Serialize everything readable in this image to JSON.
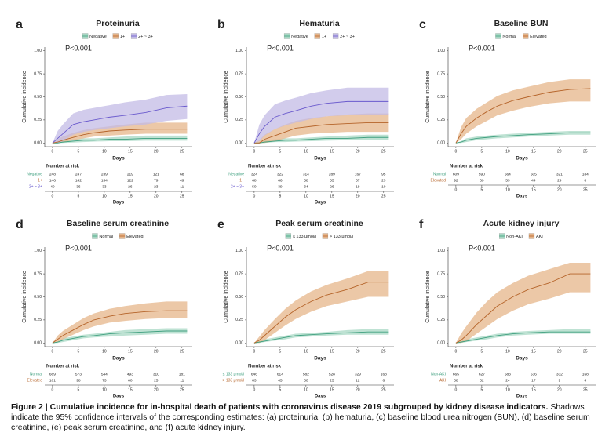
{
  "chart_data": [
    {
      "type": "line",
      "letter": "a",
      "title": "Proteinuria",
      "annotation": "P<0.001",
      "ylabel": "Cumulative incidence",
      "xlabel": "Days",
      "risk_title": "Number at risk",
      "risk_xlabel": "Days",
      "legend_position": "top",
      "xlim": [
        -1.5,
        27
      ],
      "ylim": [
        -0.04,
        1.04
      ],
      "xticks": [
        0,
        5,
        10,
        15,
        20,
        25
      ],
      "yticks": [
        {
          "value": 0,
          "label": "0.00"
        },
        {
          "value": 0.25,
          "label": "0.25"
        },
        {
          "value": 0.5,
          "label": "0.50"
        },
        {
          "value": 0.75,
          "label": "0.75"
        },
        {
          "value": 1,
          "label": "1.00"
        }
      ],
      "x": [
        0,
        1,
        2,
        4,
        6,
        8,
        11,
        14,
        18,
        22,
        26
      ],
      "series": [
        {
          "name": "Negative",
          "color": "#3f9f7f",
          "band_color": "#a8d8c4",
          "values": [
            0,
            0,
            0.01,
            0.02,
            0.03,
            0.03,
            0.04,
            0.04,
            0.05,
            0.05,
            0.05
          ],
          "lower": [
            0,
            0,
            0,
            0.005,
            0.01,
            0.015,
            0.02,
            0.02,
            0.025,
            0.025,
            0.025
          ],
          "upper": [
            0,
            0.01,
            0.03,
            0.04,
            0.05,
            0.05,
            0.06,
            0.07,
            0.08,
            0.08,
            0.08
          ],
          "at_risk": [
            248,
            247,
            239,
            219,
            121,
            68
          ]
        },
        {
          "name": "1+",
          "color": "#b5642a",
          "band_color": "#e6b58a",
          "values": [
            0,
            0.01,
            0.03,
            0.06,
            0.09,
            0.11,
            0.13,
            0.14,
            0.15,
            0.15,
            0.15
          ],
          "lower": [
            0,
            0,
            0.01,
            0.03,
            0.05,
            0.07,
            0.08,
            0.09,
            0.1,
            0.1,
            0.1
          ],
          "upper": [
            0,
            0.04,
            0.07,
            0.11,
            0.14,
            0.16,
            0.18,
            0.2,
            0.22,
            0.22,
            0.22
          ],
          "at_risk": [
            146,
            142,
            134,
            122,
            79,
            49
          ]
        },
        {
          "name": "2+ ~ 3+",
          "color": "#6a5acd",
          "band_color": "#c3bbe6",
          "values": [
            0,
            0.05,
            0.1,
            0.2,
            0.23,
            0.25,
            0.28,
            0.3,
            0.33,
            0.38,
            0.4
          ],
          "lower": [
            0,
            0,
            0.02,
            0.09,
            0.12,
            0.14,
            0.16,
            0.18,
            0.2,
            0.24,
            0.26
          ],
          "upper": [
            0,
            0.13,
            0.2,
            0.32,
            0.36,
            0.38,
            0.41,
            0.44,
            0.47,
            0.52,
            0.53
          ],
          "at_risk": [
            40,
            36,
            33,
            26,
            23,
            11
          ]
        }
      ]
    },
    {
      "type": "line",
      "letter": "b",
      "title": "Hematuria",
      "annotation": "P<0.001",
      "ylabel": "Cumulative incidence",
      "xlabel": "Days",
      "risk_title": "Number at risk",
      "risk_xlabel": "Days",
      "legend_position": "top",
      "xlim": [
        -1.5,
        27
      ],
      "ylim": [
        -0.04,
        1.04
      ],
      "xticks": [
        0,
        5,
        10,
        15,
        20,
        25
      ],
      "yticks": [
        {
          "value": 0,
          "label": "0.00"
        },
        {
          "value": 0.25,
          "label": "0.25"
        },
        {
          "value": 0.5,
          "label": "0.50"
        },
        {
          "value": 0.75,
          "label": "0.75"
        },
        {
          "value": 1,
          "label": "1.00"
        }
      ],
      "x": [
        0,
        1,
        2,
        4,
        6,
        8,
        11,
        14,
        18,
        22,
        26
      ],
      "series": [
        {
          "name": "Negative",
          "color": "#3f9f7f",
          "band_color": "#a8d8c4",
          "values": [
            0,
            0,
            0.01,
            0.02,
            0.03,
            0.03,
            0.04,
            0.05,
            0.05,
            0.06,
            0.06
          ],
          "lower": [
            0,
            0,
            0,
            0.01,
            0.01,
            0.015,
            0.02,
            0.025,
            0.03,
            0.035,
            0.035
          ],
          "upper": [
            0,
            0.01,
            0.03,
            0.04,
            0.05,
            0.05,
            0.06,
            0.07,
            0.08,
            0.09,
            0.09
          ],
          "at_risk": [
            324,
            322,
            314,
            289,
            167,
            95
          ]
        },
        {
          "name": "1+",
          "color": "#b5642a",
          "band_color": "#e6b58a",
          "values": [
            0,
            0,
            0.04,
            0.08,
            0.12,
            0.16,
            0.18,
            0.2,
            0.21,
            0.22,
            0.22
          ],
          "lower": [
            0,
            0,
            0,
            0.02,
            0.05,
            0.08,
            0.1,
            0.11,
            0.12,
            0.12,
            0.12
          ],
          "upper": [
            0,
            0.03,
            0.09,
            0.15,
            0.2,
            0.24,
            0.27,
            0.29,
            0.31,
            0.32,
            0.32
          ],
          "at_risk": [
            68,
            66,
            58,
            55,
            37,
            23
          ]
        },
        {
          "name": "2+ ~ 3+",
          "color": "#6a5acd",
          "band_color": "#c3bbe6",
          "values": [
            0,
            0.1,
            0.18,
            0.28,
            0.32,
            0.35,
            0.4,
            0.43,
            0.45,
            0.45,
            0.45
          ],
          "lower": [
            0,
            0.02,
            0.08,
            0.15,
            0.19,
            0.22,
            0.26,
            0.29,
            0.3,
            0.3,
            0.3
          ],
          "upper": [
            0,
            0.2,
            0.3,
            0.42,
            0.46,
            0.49,
            0.54,
            0.57,
            0.6,
            0.6,
            0.6
          ],
          "at_risk": [
            50,
            39,
            34,
            26,
            19,
            10
          ]
        }
      ]
    },
    {
      "type": "line",
      "letter": "c",
      "title": "Baseline BUN",
      "annotation": "P<0.001",
      "ylabel": "Cumulative incidence",
      "xlabel": "Days",
      "risk_title": "Number at risk",
      "risk_xlabel": "Days",
      "legend_position": "top",
      "xlim": [
        -1.5,
        27
      ],
      "ylim": [
        -0.04,
        1.04
      ],
      "xticks": [
        0,
        5,
        10,
        15,
        20,
        25
      ],
      "yticks": [
        {
          "value": 0,
          "label": "0.00"
        },
        {
          "value": 0.25,
          "label": "0.25"
        },
        {
          "value": 0.5,
          "label": "0.50"
        },
        {
          "value": 0.75,
          "label": "0.75"
        },
        {
          "value": 1,
          "label": "1.00"
        }
      ],
      "x": [
        0,
        1,
        2,
        4,
        6,
        8,
        11,
        14,
        18,
        22,
        26
      ],
      "series": [
        {
          "name": "Normal",
          "color": "#3f9f7f",
          "band_color": "#a8d8c4",
          "values": [
            0,
            0.01,
            0.03,
            0.05,
            0.06,
            0.07,
            0.08,
            0.09,
            0.1,
            0.11,
            0.11
          ],
          "lower": [
            0,
            0,
            0.01,
            0.03,
            0.04,
            0.05,
            0.06,
            0.07,
            0.08,
            0.09,
            0.09
          ],
          "upper": [
            0,
            0.02,
            0.05,
            0.07,
            0.08,
            0.09,
            0.1,
            0.11,
            0.12,
            0.13,
            0.13
          ],
          "at_risk": [
            609,
            590,
            564,
            505,
            321,
            184
          ]
        },
        {
          "name": "Elevated",
          "color": "#b5642a",
          "band_color": "#e6b58a",
          "values": [
            0,
            0.1,
            0.18,
            0.27,
            0.34,
            0.4,
            0.46,
            0.5,
            0.55,
            0.58,
            0.59
          ],
          "lower": [
            0,
            0.04,
            0.1,
            0.18,
            0.24,
            0.3,
            0.35,
            0.39,
            0.43,
            0.45,
            0.45
          ],
          "upper": [
            0,
            0.17,
            0.27,
            0.37,
            0.44,
            0.51,
            0.57,
            0.61,
            0.66,
            0.69,
            0.69
          ],
          "at_risk": [
            92,
            69,
            53,
            44,
            29,
            8
          ]
        }
      ]
    },
    {
      "type": "line",
      "letter": "d",
      "title": "Baseline serum creatinine",
      "annotation": "P<0.001",
      "ylabel": "Cumulative incidence",
      "xlabel": "Days",
      "risk_title": "Number at risk",
      "risk_xlabel": "Days",
      "legend_position": "top",
      "xlim": [
        -1.5,
        27
      ],
      "ylim": [
        -0.04,
        1.04
      ],
      "xticks": [
        0,
        5,
        10,
        15,
        20,
        25
      ],
      "yticks": [
        {
          "value": 0,
          "label": "0.00"
        },
        {
          "value": 0.25,
          "label": "0.25"
        },
        {
          "value": 0.5,
          "label": "0.50"
        },
        {
          "value": 0.75,
          "label": "0.75"
        },
        {
          "value": 1,
          "label": "1.00"
        }
      ],
      "x": [
        0,
        1,
        2,
        4,
        6,
        8,
        11,
        14,
        18,
        22,
        26
      ],
      "series": [
        {
          "name": "Normal",
          "color": "#3f9f7f",
          "band_color": "#a8d8c4",
          "values": [
            0,
            0.01,
            0.03,
            0.05,
            0.07,
            0.08,
            0.1,
            0.11,
            0.12,
            0.13,
            0.13
          ],
          "lower": [
            0,
            0,
            0.01,
            0.03,
            0.05,
            0.06,
            0.07,
            0.08,
            0.09,
            0.1,
            0.1
          ],
          "upper": [
            0,
            0.02,
            0.05,
            0.07,
            0.09,
            0.1,
            0.12,
            0.14,
            0.15,
            0.16,
            0.16
          ],
          "at_risk": [
            669,
            573,
            544,
            493,
            310,
            181
          ]
        },
        {
          "name": "Elevated",
          "color": "#b5642a",
          "band_color": "#e6b58a",
          "values": [
            0,
            0.04,
            0.08,
            0.14,
            0.2,
            0.25,
            0.29,
            0.32,
            0.34,
            0.35,
            0.35
          ],
          "lower": [
            0,
            0.01,
            0.04,
            0.09,
            0.14,
            0.18,
            0.22,
            0.24,
            0.26,
            0.27,
            0.27
          ],
          "upper": [
            0,
            0.08,
            0.13,
            0.2,
            0.27,
            0.32,
            0.37,
            0.4,
            0.43,
            0.45,
            0.45
          ],
          "at_risk": [
            161,
            98,
            73,
            60,
            25,
            11
          ]
        }
      ]
    },
    {
      "type": "line",
      "letter": "e",
      "title": "Peak serum creatinine",
      "annotation": "P<0.001",
      "ylabel": "Cumulative incidence",
      "xlabel": "Days",
      "risk_title": "Number at risk",
      "risk_xlabel": "Days",
      "legend_position": "top",
      "xlim": [
        -1.5,
        27
      ],
      "ylim": [
        -0.04,
        1.04
      ],
      "xticks": [
        0,
        5,
        10,
        15,
        20,
        25
      ],
      "yticks": [
        {
          "value": 0,
          "label": "0.00"
        },
        {
          "value": 0.25,
          "label": "0.25"
        },
        {
          "value": 0.5,
          "label": "0.50"
        },
        {
          "value": 0.75,
          "label": "0.75"
        },
        {
          "value": 1,
          "label": "1.00"
        }
      ],
      "x": [
        0,
        1,
        2,
        4,
        6,
        8,
        11,
        14,
        18,
        22,
        26
      ],
      "series": [
        {
          "name": "≤ 133 μmol/l",
          "color": "#3f9f7f",
          "band_color": "#a8d8c4",
          "values": [
            0,
            0.01,
            0.02,
            0.04,
            0.06,
            0.08,
            0.09,
            0.1,
            0.11,
            0.12,
            0.12
          ],
          "lower": [
            0,
            0,
            0.01,
            0.025,
            0.04,
            0.06,
            0.07,
            0.08,
            0.09,
            0.09,
            0.09
          ],
          "upper": [
            0,
            0.02,
            0.04,
            0.06,
            0.08,
            0.1,
            0.11,
            0.12,
            0.14,
            0.15,
            0.15
          ],
          "at_risk": [
            646,
            614,
            582,
            528,
            329,
            168
          ]
        },
        {
          "name": "> 133 μmol/l",
          "color": "#b5642a",
          "band_color": "#e6b58a",
          "values": [
            0,
            0.03,
            0.08,
            0.18,
            0.28,
            0.36,
            0.45,
            0.52,
            0.58,
            0.66,
            0.66
          ],
          "lower": [
            0,
            0,
            0.03,
            0.11,
            0.19,
            0.26,
            0.34,
            0.4,
            0.45,
            0.5,
            0.5
          ],
          "upper": [
            0,
            0.07,
            0.14,
            0.26,
            0.37,
            0.46,
            0.56,
            0.63,
            0.7,
            0.78,
            0.78
          ],
          "at_risk": [
            83,
            45,
            30,
            25,
            12,
            6
          ]
        }
      ]
    },
    {
      "type": "line",
      "letter": "f",
      "title": "Acute kidney injury",
      "annotation": "P<0.001",
      "ylabel": "Cumulative incidence",
      "xlabel": "Days",
      "risk_title": "Number at risk",
      "risk_xlabel": "Days",
      "legend_position": "top",
      "xlim": [
        -1.5,
        27
      ],
      "ylim": [
        -0.04,
        1.04
      ],
      "xticks": [
        0,
        5,
        10,
        15,
        20,
        25
      ],
      "yticks": [
        {
          "value": 0,
          "label": "0.00"
        },
        {
          "value": 0.25,
          "label": "0.25"
        },
        {
          "value": 0.5,
          "label": "0.50"
        },
        {
          "value": 0.75,
          "label": "0.75"
        },
        {
          "value": 1,
          "label": "1.00"
        }
      ],
      "x": [
        0,
        1,
        2,
        4,
        6,
        8,
        11,
        14,
        18,
        22,
        26
      ],
      "series": [
        {
          "name": "Non-AKI",
          "color": "#3f9f7f",
          "band_color": "#a8d8c4",
          "values": [
            0,
            0.01,
            0.02,
            0.04,
            0.06,
            0.08,
            0.1,
            0.11,
            0.12,
            0.12,
            0.12
          ],
          "lower": [
            0,
            0,
            0.01,
            0.025,
            0.04,
            0.06,
            0.08,
            0.09,
            0.1,
            0.1,
            0.1
          ],
          "upper": [
            0,
            0.02,
            0.04,
            0.06,
            0.08,
            0.1,
            0.12,
            0.13,
            0.14,
            0.15,
            0.15
          ],
          "at_risk": [
            665,
            627,
            583,
            536,
            332,
            168
          ]
        },
        {
          "name": "AKI",
          "color": "#b5642a",
          "band_color": "#e6b58a",
          "values": [
            0,
            0.03,
            0.08,
            0.2,
            0.3,
            0.4,
            0.5,
            0.58,
            0.65,
            0.75,
            0.75
          ],
          "lower": [
            0,
            0,
            0.02,
            0.1,
            0.18,
            0.26,
            0.35,
            0.42,
            0.48,
            0.55,
            0.55
          ],
          "upper": [
            0,
            0.1,
            0.18,
            0.33,
            0.45,
            0.55,
            0.65,
            0.73,
            0.8,
            0.87,
            0.87
          ],
          "at_risk": [
            38,
            32,
            24,
            17,
            9,
            4
          ]
        }
      ]
    }
  ],
  "caption": {
    "title": "Figure 2 | Cumulative incidence for in-hospital death of patients with coronavirus disease 2019 subgrouped by kidney disease indicators.",
    "text": "Shadows indicate the 95% confidence intervals of the corresponding estimates: (a) proteinuria, (b) hematuria, (c) baseline blood urea nitrogen (BUN), (d) baseline serum creatinine, (e) peak serum creatinine, and (f) acute kidney injury."
  }
}
